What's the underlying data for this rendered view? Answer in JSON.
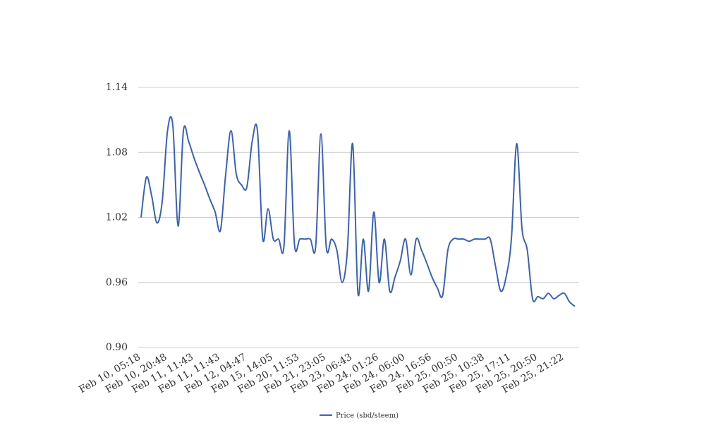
{
  "chart_data": {
    "type": "line",
    "categories": [
      "Feb 10, 05:18",
      null,
      null,
      null,
      null,
      "Feb 10, 20:48",
      null,
      null,
      null,
      null,
      "Feb 11, 11:43",
      null,
      null,
      null,
      null,
      "Feb 11, 11:43",
      null,
      null,
      null,
      null,
      "Feb 12, 04:47",
      null,
      null,
      null,
      null,
      "Feb 15, 14:05",
      null,
      null,
      null,
      null,
      "Feb 20, 11:53",
      null,
      null,
      null,
      null,
      "Feb 21, 23:05",
      null,
      null,
      null,
      null,
      "Feb 23, 06:43",
      null,
      null,
      null,
      null,
      "Feb 24, 01:26",
      null,
      null,
      null,
      null,
      "Feb 24, 06:00",
      null,
      null,
      null,
      null,
      "Feb 24, 16:56",
      null,
      null,
      null,
      null,
      "Feb 25, 00:50",
      null,
      null,
      null,
      null,
      "Feb 25, 10:38",
      null,
      null,
      null,
      null,
      "Feb 25, 17:11",
      null,
      null,
      null,
      null,
      "Feb 25, 20:50",
      null,
      null,
      null,
      null,
      "Feb 25, 21:22",
      null,
      null
    ],
    "series": [
      {
        "name": "Price (sbd/steem)",
        "color": "#3a62b5",
        "values": [
          1.02,
          1.057,
          1.04,
          1.015,
          1.035,
          1.1,
          1.105,
          1.012,
          1.1,
          1.09,
          1.075,
          1.062,
          1.05,
          1.037,
          1.025,
          1.008,
          1.06,
          1.1,
          1.06,
          1.05,
          1.048,
          1.09,
          1.1,
          1.0,
          1.028,
          1.0,
          1.0,
          0.993,
          1.1,
          0.995,
          1.0,
          1.0,
          1.0,
          0.993,
          1.097,
          0.993,
          1.0,
          0.99,
          0.96,
          0.99,
          1.088,
          0.95,
          1.0,
          0.952,
          1.025,
          0.96,
          1.0,
          0.952,
          0.965,
          0.98,
          1.0,
          0.967,
          1.0,
          0.99,
          0.978,
          0.965,
          0.955,
          0.948,
          0.99,
          1.0,
          1.0,
          1.0,
          0.998,
          1.0,
          1.0,
          1.0,
          1.0,
          0.975,
          0.952,
          0.965,
          1.0,
          1.088,
          1.01,
          0.99,
          0.945,
          0.947,
          0.945,
          0.95,
          0.945,
          0.948,
          0.95,
          0.942,
          0.938
        ]
      }
    ],
    "ylim": [
      0.9,
      1.14
    ],
    "yticks": [
      {
        "value": 0.9,
        "label": "0.90"
      },
      0.96,
      1.02,
      1.08,
      1.14
    ],
    "grid": true,
    "legend": "bottom"
  }
}
